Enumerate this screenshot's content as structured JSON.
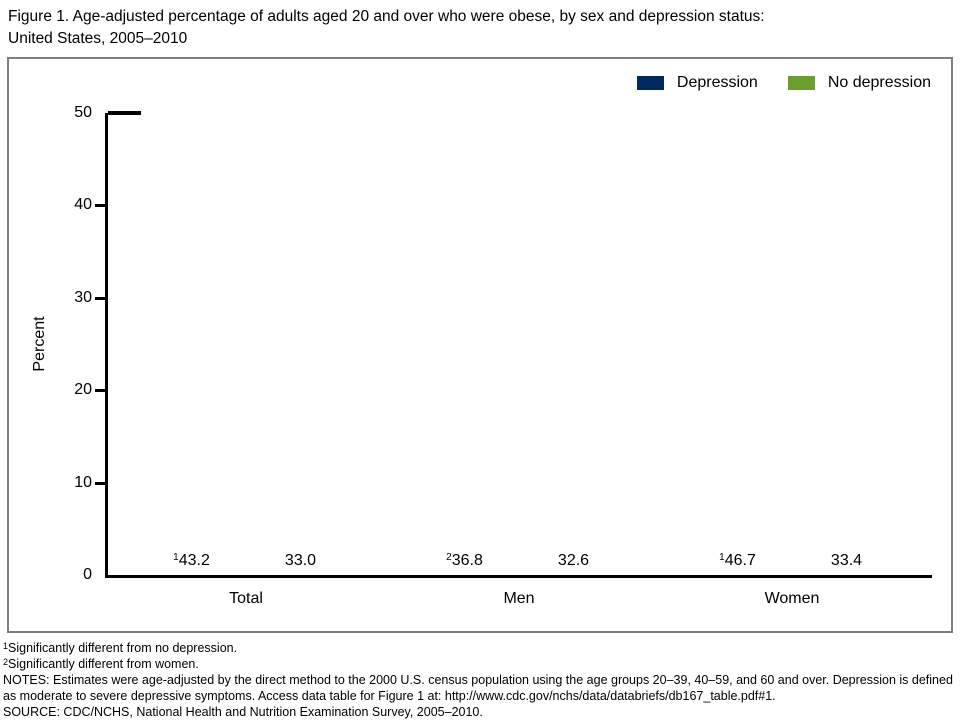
{
  "title": {
    "line1": "Figure 1. Age-adjusted percentage of adults aged 20 and over who were obese, by sex and depression status:",
    "line2": "United States, 2005–2010"
  },
  "chart_data": {
    "type": "bar",
    "categories": [
      "Total",
      "Men",
      "Women"
    ],
    "series": [
      {
        "name": "Depression",
        "color": "#002a5e",
        "values": [
          43.2,
          36.8,
          46.7
        ],
        "value_labels": [
          {
            "sup": "1",
            "text": "43.2"
          },
          {
            "sup": "2",
            "text": "36.8"
          },
          {
            "sup": "1",
            "text": "46.7"
          }
        ]
      },
      {
        "name": "No depression",
        "color": "#6a9e2f",
        "values": [
          33.0,
          32.6,
          33.4
        ],
        "value_labels": [
          {
            "sup": "",
            "text": "33.0"
          },
          {
            "sup": "",
            "text": "32.6"
          },
          {
            "sup": "",
            "text": "33.4"
          }
        ]
      }
    ],
    "ylabel": "Percent",
    "ylim": [
      0,
      50
    ],
    "yticks": [
      0,
      10,
      20,
      30,
      40,
      50
    ],
    "grid": false,
    "legend_position": "top-right"
  },
  "footnotes": [
    {
      "sup": "1",
      "text": "Significantly different from no depression."
    },
    {
      "sup": "2",
      "text": "Significantly different from women."
    }
  ],
  "notes": "NOTES: Estimates were age-adjusted by the direct method to the 2000 U.S. census population using the age groups 20–39, 40–59, and 60 and over. Depression is defined as moderate to severe depressive symptoms. Access data table for Figure 1 at: http://www.cdc.gov/nchs/data/databriefs/db167_table.pdf#1.",
  "source": "SOURCE: CDC/NCHS, National Health and Nutrition Examination Survey, 2005–2010."
}
